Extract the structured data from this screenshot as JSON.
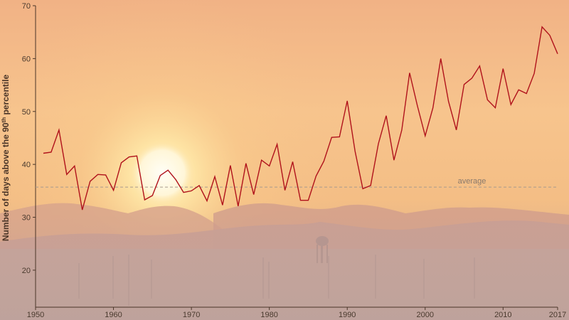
{
  "chart_data": {
    "type": "line",
    "x": [
      1951,
      1952,
      1953,
      1954,
      1955,
      1956,
      1957,
      1958,
      1959,
      1960,
      1961,
      1962,
      1963,
      1964,
      1965,
      1966,
      1967,
      1968,
      1969,
      1970,
      1971,
      1972,
      1973,
      1974,
      1975,
      1976,
      1977,
      1978,
      1979,
      1980,
      1981,
      1982,
      1983,
      1984,
      1985,
      1986,
      1987,
      1988,
      1989,
      1990,
      1991,
      1992,
      1993,
      1994,
      1995,
      1996,
      1997,
      1998,
      1999,
      2000,
      2001,
      2002,
      2003,
      2004,
      2005,
      2006,
      2007,
      2008,
      2009,
      2010,
      2011,
      2012,
      2013,
      2014,
      2015,
      2016,
      2017
    ],
    "series": [
      {
        "values": [
          42.1,
          42.3,
          46.5,
          38.1,
          39.7,
          31.4,
          36.8,
          38.1,
          38.0,
          35.1,
          40.3,
          41.4,
          41.6,
          33.3,
          34.1,
          37.9,
          38.9,
          37.1,
          34.7,
          35.0,
          36.0,
          33.1,
          37.7,
          32.3,
          39.8,
          32.1,
          40.2,
          34.3,
          40.8,
          39.7,
          43.8,
          35.1,
          40.5,
          33.2,
          33.2,
          37.8,
          40.6,
          45.1,
          45.2,
          52.0,
          42.5,
          35.4,
          36.0,
          43.9,
          49.2,
          40.8,
          46.5,
          57.3,
          51.1,
          45.4,
          50.7,
          60.0,
          51.9,
          46.5,
          55.1,
          56.3,
          58.6,
          52.2,
          50.7,
          58.1,
          51.3,
          54.1,
          53.4,
          57.2,
          66.0,
          64.4,
          60.9
        ],
        "color": "#b0121b"
      }
    ],
    "average": 35.7,
    "average_label": "average",
    "ylabel": "Number of days above the 90th percentile",
    "ylabel_parts": {
      "pre": "Number of days above the 90",
      "sup": "th",
      "post": " percentile"
    },
    "xlim": [
      1950,
      2017
    ],
    "ylim": [
      13,
      70
    ],
    "xticks": [
      1950,
      1960,
      1970,
      1980,
      1990,
      2000,
      2010,
      2017
    ],
    "yticks": [
      20,
      30,
      40,
      50,
      60,
      70
    ],
    "grid": false
  }
}
